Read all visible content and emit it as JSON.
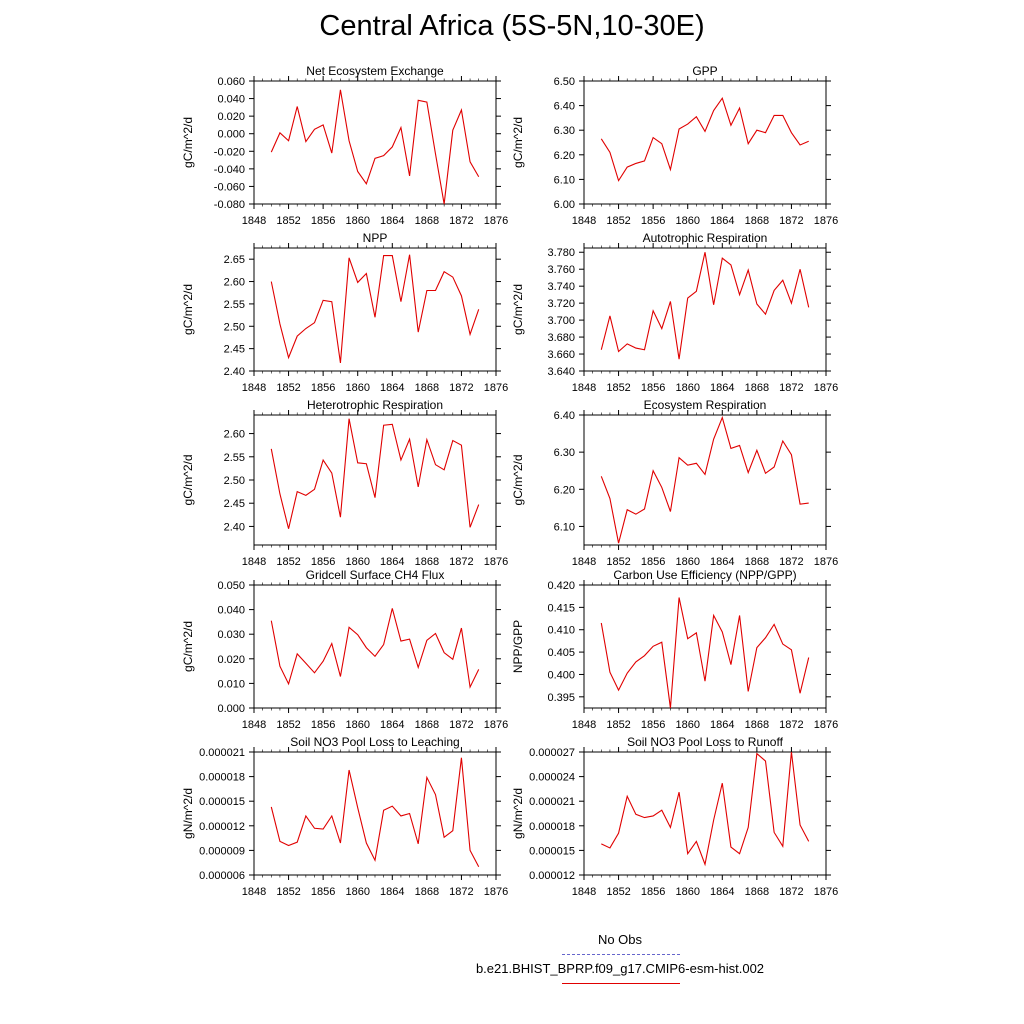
{
  "title": "Central Africa (5S-5N,10-30E)",
  "legend": {
    "obs_label": "No Obs",
    "model_label": "b.e21.BHIST_BPRP.f09_g17.CMIP6-esm-hist.002",
    "obs_color": "#6666cc",
    "model_color": "#e00000"
  },
  "chart_data": [
    {
      "type": "line",
      "title": "Net Ecosystem Exchange",
      "ylabel": "gC/m^2/d",
      "xlim": [
        1848,
        1876
      ],
      "ylim": [
        -0.08,
        0.06
      ],
      "xticks": [
        "1848",
        "1852",
        "1856",
        "1860",
        "1864",
        "1868",
        "1872",
        "1876"
      ],
      "yticks": [
        "-0.080",
        "-0.060",
        "-0.040",
        "-0.020",
        "0.000",
        "0.020",
        "0.040",
        "0.060"
      ],
      "x": [
        1850,
        1851,
        1852,
        1853,
        1854,
        1855,
        1856,
        1857,
        1858,
        1859,
        1860,
        1861,
        1862,
        1863,
        1864,
        1865,
        1866,
        1867,
        1868,
        1869,
        1870,
        1871,
        1872,
        1873,
        1874
      ],
      "series": [
        {
          "values": [
            -0.021,
            0.001,
            -0.008,
            0.031,
            -0.009,
            0.005,
            0.01,
            -0.022,
            0.05,
            -0.008,
            -0.043,
            -0.057,
            -0.028,
            -0.025,
            -0.015,
            0.007,
            -0.048,
            0.038,
            0.036,
            -0.023,
            -0.08,
            0.004,
            0.027,
            -0.032,
            -0.049
          ],
          "color": "#e00000"
        }
      ]
    },
    {
      "type": "line",
      "title": "GPP",
      "ylabel": "gC/m^2/d",
      "xlim": [
        1848,
        1876
      ],
      "ylim": [
        6.0,
        6.5
      ],
      "xticks": [
        "1848",
        "1852",
        "1856",
        "1860",
        "1864",
        "1868",
        "1872",
        "1876"
      ],
      "yticks": [
        "6.00",
        "6.10",
        "6.20",
        "6.30",
        "6.40",
        "6.50"
      ],
      "x": [
        1850,
        1851,
        1852,
        1853,
        1854,
        1855,
        1856,
        1857,
        1858,
        1859,
        1860,
        1861,
        1862,
        1863,
        1864,
        1865,
        1866,
        1867,
        1868,
        1869,
        1870,
        1871,
        1872,
        1873,
        1874
      ],
      "series": [
        {
          "values": [
            6.265,
            6.21,
            6.095,
            6.15,
            6.165,
            6.175,
            6.27,
            6.245,
            6.14,
            6.305,
            6.325,
            6.355,
            6.295,
            6.38,
            6.43,
            6.32,
            6.39,
            6.245,
            6.3,
            6.29,
            6.36,
            6.36,
            6.29,
            6.24,
            6.255
          ],
          "color": "#e00000"
        }
      ]
    },
    {
      "type": "line",
      "title": "NPP",
      "ylabel": "gC/m^2/d",
      "xlim": [
        1848,
        1876
      ],
      "ylim": [
        2.4,
        2.675
      ],
      "xticks": [
        "1848",
        "1852",
        "1856",
        "1860",
        "1864",
        "1868",
        "1872",
        "1876"
      ],
      "yticks": [
        "2.40",
        "2.45",
        "2.50",
        "2.55",
        "2.60",
        "2.65"
      ],
      "x": [
        1850,
        1851,
        1852,
        1853,
        1854,
        1855,
        1856,
        1857,
        1858,
        1859,
        1860,
        1861,
        1862,
        1863,
        1864,
        1865,
        1866,
        1867,
        1868,
        1869,
        1870,
        1871,
        1872,
        1873,
        1874
      ],
      "series": [
        {
          "values": [
            2.6,
            2.505,
            2.43,
            2.478,
            2.495,
            2.508,
            2.558,
            2.555,
            2.418,
            2.653,
            2.598,
            2.618,
            2.52,
            2.658,
            2.658,
            2.555,
            2.66,
            2.487,
            2.58,
            2.58,
            2.622,
            2.61,
            2.568,
            2.482,
            2.538
          ],
          "color": "#e00000"
        }
      ]
    },
    {
      "type": "line",
      "title": "Autotrophic Respiration",
      "ylabel": "gC/m^2/d",
      "xlim": [
        1848,
        1876
      ],
      "ylim": [
        3.64,
        3.785
      ],
      "xticks": [
        "1848",
        "1852",
        "1856",
        "1860",
        "1864",
        "1868",
        "1872",
        "1876"
      ],
      "yticks": [
        "3.640",
        "3.660",
        "3.680",
        "3.700",
        "3.720",
        "3.740",
        "3.760",
        "3.780"
      ],
      "x": [
        1850,
        1851,
        1852,
        1853,
        1854,
        1855,
        1856,
        1857,
        1858,
        1859,
        1860,
        1861,
        1862,
        1863,
        1864,
        1865,
        1866,
        1867,
        1868,
        1869,
        1870,
        1871,
        1872,
        1873,
        1874
      ],
      "series": [
        {
          "values": [
            3.665,
            3.705,
            3.663,
            3.672,
            3.667,
            3.665,
            3.711,
            3.69,
            3.722,
            3.654,
            3.726,
            3.734,
            3.78,
            3.718,
            3.773,
            3.765,
            3.73,
            3.759,
            3.719,
            3.707,
            3.735,
            3.747,
            3.72,
            3.76,
            3.715
          ],
          "color": "#e00000"
        }
      ]
    },
    {
      "type": "line",
      "title": "Heterotrophic Respiration",
      "ylabel": "gC/m^2/d",
      "xlim": [
        1848,
        1876
      ],
      "ylim": [
        2.36,
        2.64
      ],
      "xticks": [
        "1848",
        "1852",
        "1856",
        "1860",
        "1864",
        "1868",
        "1872",
        "1876"
      ],
      "yticks": [
        "2.40",
        "2.45",
        "2.50",
        "2.55",
        "2.60"
      ],
      "x": [
        1850,
        1851,
        1852,
        1853,
        1854,
        1855,
        1856,
        1857,
        1858,
        1859,
        1860,
        1861,
        1862,
        1863,
        1864,
        1865,
        1866,
        1867,
        1868,
        1869,
        1870,
        1871,
        1872,
        1873,
        1874
      ],
      "series": [
        {
          "values": [
            2.567,
            2.47,
            2.395,
            2.475,
            2.467,
            2.48,
            2.543,
            2.515,
            2.42,
            2.632,
            2.537,
            2.535,
            2.462,
            2.618,
            2.62,
            2.543,
            2.588,
            2.485,
            2.587,
            2.533,
            2.522,
            2.585,
            2.575,
            2.398,
            2.447
          ],
          "color": "#e00000"
        }
      ]
    },
    {
      "type": "line",
      "title": "Ecosystem Respiration",
      "ylabel": "gC/m^2/d",
      "xlim": [
        1848,
        1876
      ],
      "ylim": [
        6.05,
        6.4
      ],
      "xticks": [
        "1848",
        "1852",
        "1856",
        "1860",
        "1864",
        "1868",
        "1872",
        "1876"
      ],
      "yticks": [
        "6.10",
        "6.20",
        "6.30",
        "6.40"
      ],
      "x": [
        1850,
        1851,
        1852,
        1853,
        1854,
        1855,
        1856,
        1857,
        1858,
        1859,
        1860,
        1861,
        1862,
        1863,
        1864,
        1865,
        1866,
        1867,
        1868,
        1869,
        1870,
        1871,
        1872,
        1873,
        1874
      ],
      "series": [
        {
          "values": [
            6.235,
            6.175,
            6.055,
            6.145,
            6.133,
            6.147,
            6.25,
            6.205,
            6.14,
            6.285,
            6.265,
            6.27,
            6.24,
            6.335,
            6.393,
            6.31,
            6.318,
            6.245,
            6.305,
            6.243,
            6.26,
            6.33,
            6.293,
            6.16,
            6.163
          ],
          "color": "#e00000"
        }
      ]
    },
    {
      "type": "line",
      "title": "Gridcell Surface CH4 Flux",
      "ylabel": "gC/m^2/d",
      "xlim": [
        1848,
        1876
      ],
      "ylim": [
        0.0,
        0.05
      ],
      "xticks": [
        "1848",
        "1852",
        "1856",
        "1860",
        "1864",
        "1868",
        "1872",
        "1876"
      ],
      "yticks": [
        "0.000",
        "0.010",
        "0.020",
        "0.030",
        "0.040",
        "0.050"
      ],
      "x": [
        1850,
        1851,
        1852,
        1853,
        1854,
        1855,
        1856,
        1857,
        1858,
        1859,
        1860,
        1861,
        1862,
        1863,
        1864,
        1865,
        1866,
        1867,
        1868,
        1869,
        1870,
        1871,
        1872,
        1873,
        1874
      ],
      "series": [
        {
          "values": [
            0.0355,
            0.017,
            0.0098,
            0.022,
            0.0182,
            0.0143,
            0.019,
            0.0262,
            0.0128,
            0.0328,
            0.0298,
            0.0245,
            0.021,
            0.0258,
            0.0405,
            0.0272,
            0.028,
            0.0165,
            0.0275,
            0.0303,
            0.0225,
            0.0198,
            0.0325,
            0.0085,
            0.0157
          ],
          "color": "#e00000"
        }
      ]
    },
    {
      "type": "line",
      "title": "Carbon Use Efficiency (NPP/GPP)",
      "ylabel": "NPP/GPP",
      "xlim": [
        1848,
        1876
      ],
      "ylim": [
        0.3925,
        0.42
      ],
      "xticks": [
        "1848",
        "1852",
        "1856",
        "1860",
        "1864",
        "1868",
        "1872",
        "1876"
      ],
      "yticks": [
        "0.395",
        "0.400",
        "0.405",
        "0.410",
        "0.415",
        "0.420"
      ],
      "x": [
        1850,
        1851,
        1852,
        1853,
        1854,
        1855,
        1856,
        1857,
        1858,
        1859,
        1860,
        1861,
        1862,
        1863,
        1864,
        1865,
        1866,
        1867,
        1868,
        1869,
        1870,
        1871,
        1872,
        1873,
        1874
      ],
      "series": [
        {
          "values": [
            0.4115,
            0.4005,
            0.3965,
            0.4003,
            0.4028,
            0.4042,
            0.4063,
            0.4072,
            0.3925,
            0.4172,
            0.408,
            0.4093,
            0.3985,
            0.4132,
            0.4095,
            0.4022,
            0.4132,
            0.3962,
            0.406,
            0.4082,
            0.4112,
            0.4068,
            0.4055,
            0.3958,
            0.4038
          ],
          "color": "#e00000"
        }
      ]
    },
    {
      "type": "line",
      "title": "Soil NO3 Pool Loss to Leaching",
      "ylabel": "gN/m^2/d",
      "xlim": [
        1848,
        1876
      ],
      "ylim": [
        6e-06,
        2.1e-05
      ],
      "xticks": [
        "1848",
        "1852",
        "1856",
        "1860",
        "1864",
        "1868",
        "1872",
        "1876"
      ],
      "yticks": [
        "0.000006",
        "0.000009",
        "0.000012",
        "0.000015",
        "0.000018",
        "0.000021"
      ],
      "x": [
        1850,
        1851,
        1852,
        1853,
        1854,
        1855,
        1856,
        1857,
        1858,
        1859,
        1860,
        1861,
        1862,
        1863,
        1864,
        1865,
        1866,
        1867,
        1868,
        1869,
        1870,
        1871,
        1872,
        1873,
        1874
      ],
      "series": [
        {
          "values": [
            1.43e-05,
            1.01e-05,
            9.6e-06,
            1e-05,
            1.32e-05,
            1.17e-05,
            1.16e-05,
            1.32e-05,
            9.9e-06,
            1.88e-05,
            1.42e-05,
            9.9e-06,
            7.8e-06,
            1.39e-05,
            1.44e-05,
            1.32e-05,
            1.35e-05,
            9.8e-06,
            1.79e-05,
            1.58e-05,
            1.06e-05,
            1.14e-05,
            2.03e-05,
            9e-06,
            7e-06
          ],
          "color": "#e00000"
        }
      ]
    },
    {
      "type": "line",
      "title": "Soil NO3 Pool Loss to Runoff",
      "ylabel": "gN/m^2/d",
      "xlim": [
        1848,
        1876
      ],
      "ylim": [
        1.2e-05,
        2.7e-05
      ],
      "xticks": [
        "1848",
        "1852",
        "1856",
        "1860",
        "1864",
        "1868",
        "1872",
        "1876"
      ],
      "yticks": [
        "0.000012",
        "0.000015",
        "0.000018",
        "0.000021",
        "0.000024",
        "0.000027"
      ],
      "x": [
        1850,
        1851,
        1852,
        1853,
        1854,
        1855,
        1856,
        1857,
        1858,
        1859,
        1860,
        1861,
        1862,
        1863,
        1864,
        1865,
        1866,
        1867,
        1868,
        1869,
        1870,
        1871,
        1872,
        1873,
        1874
      ],
      "series": [
        {
          "values": [
            1.58e-05,
            1.53e-05,
            1.71e-05,
            2.16e-05,
            1.94e-05,
            1.9e-05,
            1.92e-05,
            1.99e-05,
            1.78e-05,
            2.21e-05,
            1.46e-05,
            1.61e-05,
            1.33e-05,
            1.87e-05,
            2.32e-05,
            1.54e-05,
            1.46e-05,
            1.78e-05,
            2.68e-05,
            2.59e-05,
            1.72e-05,
            1.55e-05,
            2.7e-05,
            1.81e-05,
            1.61e-05
          ],
          "color": "#e00000"
        }
      ]
    }
  ]
}
